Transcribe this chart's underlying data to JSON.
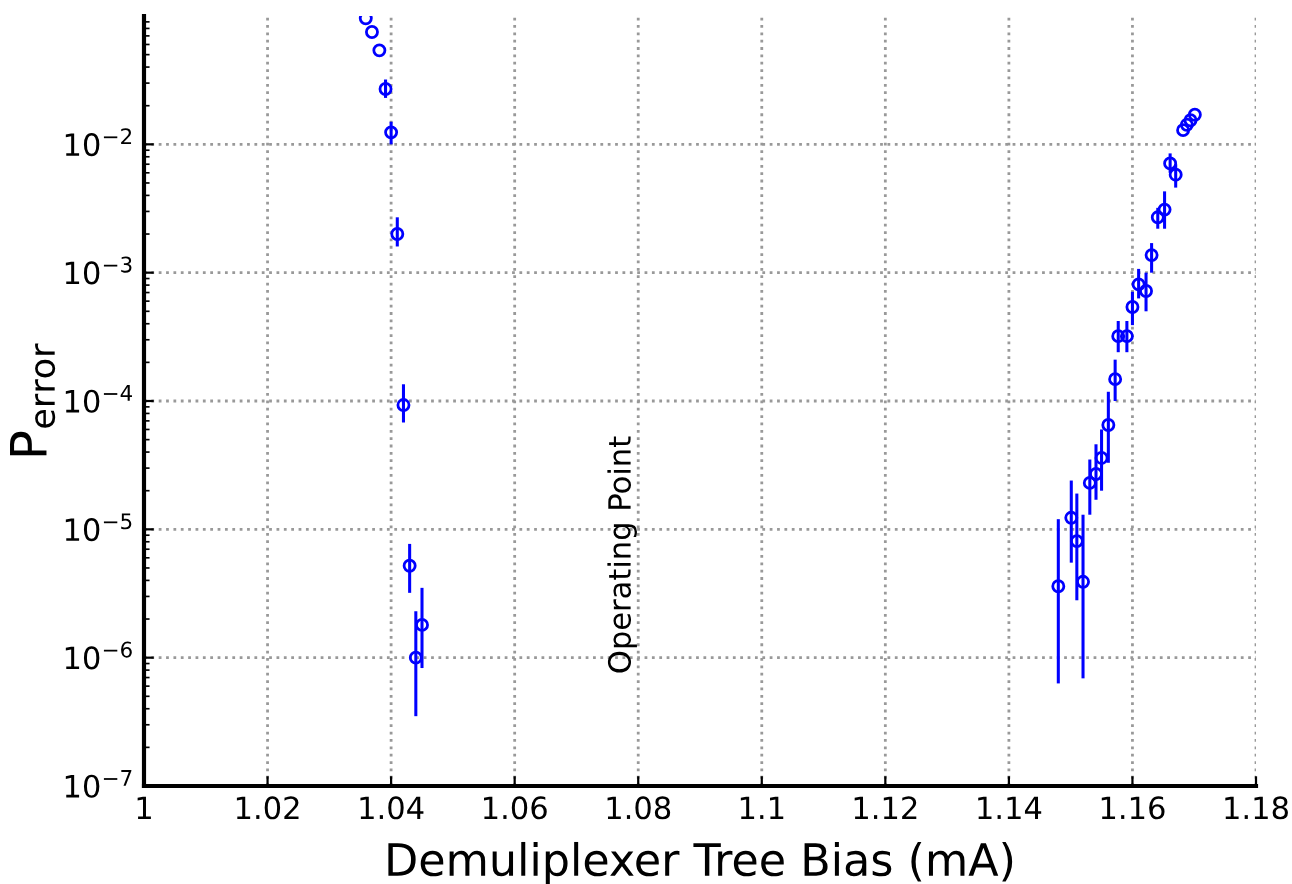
{
  "chart_data": {
    "type": "scatter",
    "xlabel": "Demuliplexer Tree Bias (mA)",
    "ylabel": "P$_{error}$",
    "log": "y",
    "grid": true,
    "marker": "circle",
    "legend": false,
    "xlim": [
      1,
      1.18
    ],
    "xticks": [
      1,
      1.02,
      1.04,
      1.06,
      1.08,
      1.1,
      1.12,
      1.14,
      1.16,
      1.18
    ],
    "ylim": [
      1e-07,
      0.1
    ],
    "yticks": [
      {
        "value": 1e-07,
        "label": "10$^{−7}$"
      },
      {
        "value": 1e-06,
        "label": "10$^{−6}$"
      },
      {
        "value": 1e-05,
        "label": "10$^{−5}$"
      },
      {
        "value": 0.0001,
        "label": "10$^{−4}$"
      },
      {
        "value": 0.001,
        "label": "10$^{−3}$"
      },
      {
        "value": 0.01,
        "label": "10$^{−2}$"
      }
    ],
    "annotations": [
      "Operating Point"
    ],
    "series": [
      {
        "color": "#0000ff",
        "x": [
          1.0359,
          1.0369,
          1.0381,
          1.0391,
          1.04,
          1.041,
          1.042,
          1.043,
          1.044,
          1.045,
          1.148,
          1.1501,
          1.151,
          1.152,
          1.1531,
          1.1541,
          1.155,
          1.1561,
          1.1572,
          1.1577,
          1.1591,
          1.16,
          1.161,
          1.1622,
          1.1631,
          1.1641,
          1.1652,
          1.1661,
          1.167,
          1.1682,
          1.1688,
          1.1694,
          1.1701
        ],
        "values": [
          0.096,
          0.075,
          0.054,
          0.027,
          0.0124,
          0.002,
          9.3e-05,
          5.2e-06,
          1e-06,
          1.8e-06,
          3.6e-06,
          1.23e-05,
          8.1e-06,
          3.9e-06,
          2.3e-05,
          2.7e-05,
          3.6e-05,
          6.5e-05,
          0.000148,
          0.00032,
          0.00032,
          0.00054,
          0.00081,
          0.00072,
          0.00137,
          0.0027,
          0.0031,
          0.0071,
          0.0058,
          0.0129,
          0.0142,
          0.0154,
          0.017
        ],
        "errors": [
          null,
          null,
          null,
          [
            0.023,
            0.032
          ],
          [
            0.01,
            0.015
          ],
          [
            0.0016,
            0.0027
          ],
          [
            6.8e-05,
            0.000135
          ],
          [
            3.2e-06,
            7.7e-06
          ],
          [
            3.5e-07,
            2.3e-06
          ],
          [
            8.3e-07,
            3.5e-06
          ],
          [
            6.3e-07,
            1.2e-05
          ],
          [
            5.5e-06,
            2.4e-05
          ],
          [
            2.8e-06,
            1.9e-05
          ],
          [
            6.9e-07,
            1.3e-05
          ],
          [
            1.3e-05,
            3.5e-05
          ],
          [
            1.7e-05,
            4.6e-05
          ],
          [
            2e-05,
            6e-05
          ],
          [
            3.3e-05,
            0.000118
          ],
          [
            0.0001,
            0.00021
          ],
          [
            0.00024,
            0.00042
          ],
          [
            0.00024,
            0.00042
          ],
          [
            0.00039,
            0.00071
          ],
          [
            0.00063,
            0.00107
          ],
          [
            0.0005,
            0.001
          ],
          [
            0.001,
            0.0017
          ],
          [
            0.0022,
            0.0032
          ],
          [
            0.0022,
            0.0043
          ],
          [
            0.006,
            0.0085
          ],
          [
            0.0046,
            0.007
          ],
          null,
          null,
          null,
          null
        ]
      }
    ]
  }
}
